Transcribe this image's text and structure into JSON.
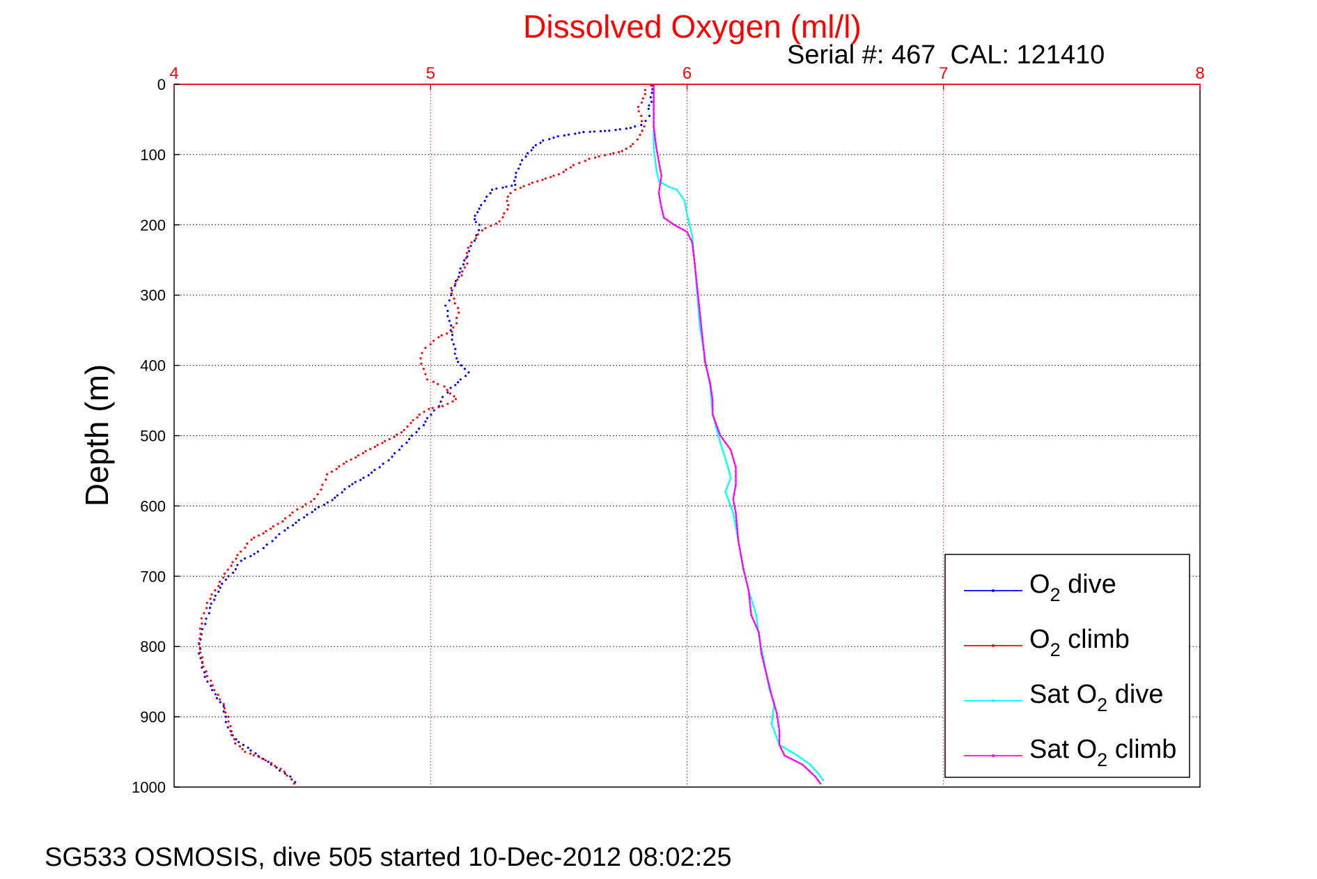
{
  "chart_data": {
    "type": "scatter",
    "title": "Dissolved Oxygen (ml/l)",
    "subtitle": "Serial #: 467  CAL: 121410",
    "ylabel": "Depth (m)",
    "xlim": [
      4,
      8
    ],
    "ylim": [
      0,
      1000
    ],
    "y_reversed": true,
    "x_axis_position": "top",
    "x_ticks": [
      4,
      5,
      6,
      7,
      8
    ],
    "y_ticks": [
      0,
      100,
      200,
      300,
      400,
      500,
      600,
      700,
      800,
      900,
      1000
    ],
    "grid": true,
    "legend_position": "bottom-right",
    "colors": {
      "title": "#ff0000",
      "x_axis": "#ff0000",
      "y_axis": "#000000",
      "grid": "#000000"
    },
    "series": [
      {
        "name": "O2 dive",
        "legend": {
          "text": "O",
          "sub": "2",
          "rest": " dive"
        },
        "color": "#0000ff",
        "style": "dotted",
        "points": [
          [
            5.87,
            2
          ],
          [
            5.86,
            12
          ],
          [
            5.86,
            25
          ],
          [
            5.85,
            35
          ],
          [
            5.85,
            45
          ],
          [
            5.84,
            52
          ],
          [
            5.82,
            58
          ],
          [
            5.78,
            62
          ],
          [
            5.7,
            66
          ],
          [
            5.6,
            68
          ],
          [
            5.5,
            74
          ],
          [
            5.44,
            80
          ],
          [
            5.4,
            90
          ],
          [
            5.38,
            98
          ],
          [
            5.36,
            108
          ],
          [
            5.34,
            120
          ],
          [
            5.33,
            132
          ],
          [
            5.33,
            143
          ],
          [
            5.28,
            147
          ],
          [
            5.24,
            150
          ],
          [
            5.22,
            160
          ],
          [
            5.2,
            172
          ],
          [
            5.18,
            182
          ],
          [
            5.17,
            192
          ],
          [
            5.19,
            200
          ],
          [
            5.18,
            215
          ],
          [
            5.16,
            230
          ],
          [
            5.14,
            245
          ],
          [
            5.12,
            262
          ],
          [
            5.1,
            280
          ],
          [
            5.08,
            300
          ],
          [
            5.06,
            315
          ],
          [
            5.07,
            330
          ],
          [
            5.08,
            350
          ],
          [
            5.09,
            370
          ],
          [
            5.1,
            390
          ],
          [
            5.13,
            405
          ],
          [
            5.15,
            410
          ],
          [
            5.12,
            420
          ],
          [
            5.08,
            432
          ],
          [
            5.05,
            445
          ],
          [
            5.03,
            458
          ],
          [
            5.0,
            470
          ],
          [
            4.97,
            485
          ],
          [
            4.93,
            500
          ],
          [
            4.89,
            515
          ],
          [
            4.85,
            530
          ],
          [
            4.8,
            545
          ],
          [
            4.74,
            560
          ],
          [
            4.68,
            572
          ],
          [
            4.64,
            585
          ],
          [
            4.6,
            595
          ],
          [
            4.55,
            605
          ],
          [
            4.49,
            620
          ],
          [
            4.43,
            635
          ],
          [
            4.38,
            650
          ],
          [
            4.33,
            665
          ],
          [
            4.26,
            678
          ],
          [
            4.24,
            690
          ],
          [
            4.2,
            705
          ],
          [
            4.17,
            722
          ],
          [
            4.14,
            745
          ],
          [
            4.12,
            768
          ],
          [
            4.1,
            790
          ],
          [
            4.1,
            810
          ],
          [
            4.11,
            830
          ],
          [
            4.13,
            850
          ],
          [
            4.16,
            868
          ],
          [
            4.19,
            885
          ],
          [
            4.2,
            900
          ],
          [
            4.21,
            915
          ],
          [
            4.24,
            932
          ],
          [
            4.3,
            948
          ],
          [
            4.38,
            968
          ],
          [
            4.45,
            985
          ],
          [
            4.47,
            993
          ]
        ]
      },
      {
        "name": "O2 climb",
        "legend": {
          "text": "O",
          "sub": "2",
          "rest": " climb"
        },
        "color": "#ff0000",
        "style": "dotted",
        "points": [
          [
            4.47,
            995
          ],
          [
            4.43,
            978
          ],
          [
            4.36,
            962
          ],
          [
            4.28,
            950
          ],
          [
            4.24,
            938
          ],
          [
            4.22,
            920
          ],
          [
            4.21,
            900
          ],
          [
            4.19,
            882
          ],
          [
            4.16,
            862
          ],
          [
            4.13,
            842
          ],
          [
            4.11,
            822
          ],
          [
            4.1,
            802
          ],
          [
            4.1,
            782
          ],
          [
            4.11,
            760
          ],
          [
            4.13,
            738
          ],
          [
            4.16,
            720
          ],
          [
            4.19,
            702
          ],
          [
            4.22,
            685
          ],
          [
            4.26,
            665
          ],
          [
            4.3,
            648
          ],
          [
            4.36,
            636
          ],
          [
            4.42,
            622
          ],
          [
            4.48,
            605
          ],
          [
            4.55,
            590
          ],
          [
            4.58,
            570
          ],
          [
            4.6,
            555
          ],
          [
            4.66,
            540
          ],
          [
            4.72,
            528
          ],
          [
            4.78,
            516
          ],
          [
            4.84,
            505
          ],
          [
            4.9,
            492
          ],
          [
            4.92,
            482
          ],
          [
            4.96,
            470
          ],
          [
            4.99,
            462
          ],
          [
            5.05,
            458
          ],
          [
            5.1,
            448
          ],
          [
            5.08,
            440
          ],
          [
            5.05,
            430
          ],
          [
            4.99,
            420
          ],
          [
            4.97,
            405
          ],
          [
            4.96,
            390
          ],
          [
            4.98,
            375
          ],
          [
            5.03,
            360
          ],
          [
            5.08,
            352
          ],
          [
            5.1,
            340
          ],
          [
            5.11,
            325
          ],
          [
            5.09,
            305
          ],
          [
            5.08,
            290
          ],
          [
            5.12,
            272
          ],
          [
            5.14,
            255
          ],
          [
            5.14,
            240
          ],
          [
            5.16,
            225
          ],
          [
            5.2,
            208
          ],
          [
            5.27,
            195
          ],
          [
            5.3,
            178
          ],
          [
            5.3,
            160
          ],
          [
            5.33,
            150
          ],
          [
            5.4,
            140
          ],
          [
            5.5,
            128
          ],
          [
            5.56,
            115
          ],
          [
            5.62,
            106
          ],
          [
            5.68,
            101
          ],
          [
            5.75,
            95
          ],
          [
            5.79,
            85
          ],
          [
            5.82,
            72
          ],
          [
            5.83,
            60
          ],
          [
            5.82,
            45
          ],
          [
            5.81,
            32
          ],
          [
            5.83,
            20
          ],
          [
            5.84,
            8
          ],
          [
            5.86,
            2
          ]
        ]
      },
      {
        "name": "Sat O2 dive",
        "legend": {
          "text": "Sat O",
          "sub": "2",
          "rest": " dive"
        },
        "color": "#00ffff",
        "style": "solid",
        "points": [
          [
            5.87,
            2
          ],
          [
            5.87,
            50
          ],
          [
            5.87,
            90
          ],
          [
            5.88,
            120
          ],
          [
            5.89,
            138
          ],
          [
            5.93,
            146
          ],
          [
            5.96,
            150
          ],
          [
            5.99,
            165
          ],
          [
            6.0,
            185
          ],
          [
            6.02,
            215
          ],
          [
            6.03,
            255
          ],
          [
            6.04,
            300
          ],
          [
            6.05,
            345
          ],
          [
            6.07,
            390
          ],
          [
            6.09,
            430
          ],
          [
            6.1,
            470
          ],
          [
            6.13,
            510
          ],
          [
            6.16,
            545
          ],
          [
            6.17,
            560
          ],
          [
            6.15,
            580
          ],
          [
            6.18,
            610
          ],
          [
            6.2,
            650
          ],
          [
            6.22,
            690
          ],
          [
            6.24,
            720
          ],
          [
            6.27,
            755
          ],
          [
            6.28,
            785
          ],
          [
            6.3,
            820
          ],
          [
            6.32,
            860
          ],
          [
            6.34,
            880
          ],
          [
            6.33,
            910
          ],
          [
            6.36,
            940
          ],
          [
            6.43,
            955
          ],
          [
            6.48,
            968
          ],
          [
            6.51,
            980
          ],
          [
            6.53,
            990
          ]
        ]
      },
      {
        "name": "Sat O2 climb",
        "legend": {
          "text": "Sat O",
          "sub": "2",
          "rest": " climb"
        },
        "color": "#ff00ff",
        "style": "solid",
        "points": [
          [
            6.52,
            995
          ],
          [
            6.5,
            985
          ],
          [
            6.45,
            968
          ],
          [
            6.38,
            955
          ],
          [
            6.36,
            940
          ],
          [
            6.36,
            920
          ],
          [
            6.35,
            895
          ],
          [
            6.33,
            870
          ],
          [
            6.31,
            840
          ],
          [
            6.29,
            810
          ],
          [
            6.28,
            780
          ],
          [
            6.25,
            755
          ],
          [
            6.24,
            720
          ],
          [
            6.22,
            690
          ],
          [
            6.2,
            650
          ],
          [
            6.19,
            610
          ],
          [
            6.18,
            590
          ],
          [
            6.19,
            570
          ],
          [
            6.19,
            545
          ],
          [
            6.17,
            520
          ],
          [
            6.13,
            500
          ],
          [
            6.1,
            470
          ],
          [
            6.1,
            450
          ],
          [
            6.09,
            425
          ],
          [
            6.07,
            395
          ],
          [
            6.06,
            360
          ],
          [
            6.05,
            325
          ],
          [
            6.04,
            290
          ],
          [
            6.03,
            255
          ],
          [
            6.02,
            225
          ],
          [
            6.0,
            210
          ],
          [
            5.95,
            200
          ],
          [
            5.91,
            190
          ],
          [
            5.9,
            175
          ],
          [
            5.89,
            155
          ],
          [
            5.9,
            130
          ],
          [
            5.89,
            110
          ],
          [
            5.88,
            90
          ],
          [
            5.87,
            60
          ],
          [
            5.87,
            30
          ],
          [
            5.87,
            2
          ]
        ]
      }
    ]
  },
  "footer": "SG533 OSMOSIS, dive 505 started 10-Dec-2012 08:02:25"
}
